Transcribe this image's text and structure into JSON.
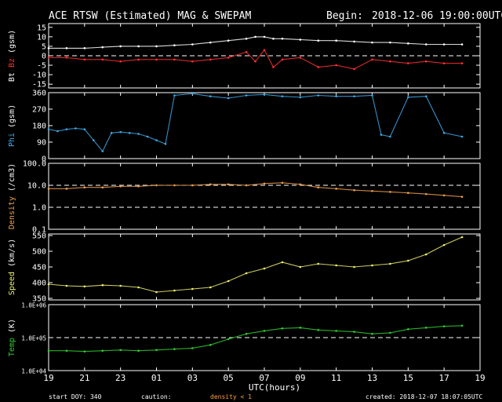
{
  "header": {
    "title": "ACE RTSW (Estimated) MAG & SWEPAM",
    "begin_label": "Begin:",
    "begin_value": "2018-12-06 19:00:00UTC"
  },
  "footer": {
    "start_doy": "start DOY: 340",
    "caution": "caution:",
    "density_note": "density < 1",
    "created": "created: 2018-12-07 18:07:05UTC"
  },
  "colors": {
    "bt": "#ffffff",
    "bz": "#ff3030",
    "phi": "#3fa9e8",
    "density": "#f0a050",
    "speed": "#f0f070",
    "temp": "#33cc33",
    "note": "#ffa040",
    "axis": "#ffffff"
  },
  "chart_data": {
    "type": "scatter",
    "x_axis": {
      "label": "UTC(hours)",
      "range": [
        0,
        24
      ],
      "tick_labels": [
        "19",
        "21",
        "23",
        "01",
        "03",
        "05",
        "07",
        "09",
        "11",
        "13",
        "15",
        "17",
        "19"
      ]
    },
    "panels": [
      {
        "id": "mag",
        "ylabel_parts": [
          "Bt",
          "Bz",
          "(gsm)"
        ],
        "ylim": [
          -17,
          17
        ],
        "ticks": [
          15,
          10,
          5,
          0,
          -5,
          -10,
          -15
        ],
        "tick_labels": [
          "15",
          "10",
          "5",
          "0",
          "-5",
          "-10",
          "-15"
        ],
        "dashed": [
          0
        ],
        "series": [
          {
            "name": "Bt",
            "color_key": "bt",
            "x": [
              0,
              1,
              2,
              3,
              4,
              5,
              6,
              7,
              8,
              9,
              10,
              11,
              11.5,
              12,
              12.5,
              13,
              14,
              15,
              16,
              17,
              18,
              19,
              20,
              21,
              22,
              23
            ],
            "y": [
              4,
              4,
              4,
              4.5,
              5,
              5,
              5,
              5.5,
              6,
              7,
              8,
              9,
              10,
              10,
              9,
              9,
              8.5,
              8,
              8,
              7.5,
              7,
              7,
              6.5,
              6,
              6,
              6
            ]
          },
          {
            "name": "Bz",
            "color_key": "bz",
            "x": [
              0,
              1,
              2,
              3,
              4,
              5,
              6,
              7,
              8,
              9,
              10,
              11,
              11.5,
              12,
              12.5,
              13,
              14,
              15,
              16,
              17,
              18,
              19,
              20,
              21,
              22,
              23
            ],
            "y": [
              -1,
              -1,
              -2,
              -2,
              -3,
              -2,
              -2,
              -2,
              -3,
              -2,
              -1,
              2,
              -3,
              3,
              -6,
              -2,
              -1,
              -6,
              -5,
              -7,
              -2,
              -3,
              -4,
              -3,
              -4,
              -4
            ]
          }
        ]
      },
      {
        "id": "phi",
        "ylabel_parts": [
          "Phi",
          "(gsm)"
        ],
        "ylim": [
          0,
          360
        ],
        "ticks": [
          360,
          270,
          180,
          90,
          0
        ],
        "tick_labels": [
          "360",
          "270",
          "180",
          "90",
          "0"
        ],
        "dashed": [],
        "series": [
          {
            "name": "Phi",
            "color_key": "phi",
            "x": [
              0,
              0.5,
              1,
              1.5,
              2,
              2.5,
              3,
              3.5,
              4,
              4.5,
              5,
              5.5,
              6,
              6.5,
              7,
              8,
              9,
              10,
              11,
              12,
              13,
              14,
              15,
              16,
              17,
              18,
              18.5,
              19,
              20,
              21,
              22,
              23
            ],
            "y": [
              160,
              150,
              160,
              165,
              160,
              100,
              40,
              140,
              145,
              140,
              135,
              120,
              100,
              80,
              345,
              355,
              340,
              330,
              345,
              350,
              340,
              335,
              345,
              340,
              340,
              345,
              130,
              120,
              335,
              340,
              140,
              120
            ]
          }
        ]
      },
      {
        "id": "density",
        "ylabel_parts": [
          "Density",
          "(/cm3)"
        ],
        "scale": "log",
        "ylim": [
          0.1,
          100
        ],
        "ticks": [
          100,
          10,
          1,
          0.1
        ],
        "tick_labels": [
          "100.0",
          "10.0",
          "1.0",
          "0.1"
        ],
        "dashed": [
          10,
          1
        ],
        "series": [
          {
            "name": "Density",
            "color_key": "density",
            "x": [
              0,
              1,
              2,
              3,
              4,
              5,
              6,
              7,
              8,
              9,
              10,
              11,
              12,
              13,
              14,
              15,
              16,
              17,
              18,
              19,
              20,
              21,
              22,
              23
            ],
            "y": [
              7,
              7,
              8,
              8,
              9,
              9,
              10,
              10,
              10,
              11,
              11,
              10,
              12,
              13,
              11,
              8,
              7,
              6,
              5.5,
              5,
              4.5,
              4,
              3.5,
              3
            ]
          }
        ]
      },
      {
        "id": "speed",
        "ylabel_parts": [
          "Speed",
          "(km/s)"
        ],
        "ylim": [
          345,
          555
        ],
        "ticks": [
          550,
          500,
          450,
          400,
          350
        ],
        "tick_labels": [
          "550",
          "500",
          "450",
          "400",
          "350"
        ],
        "dashed": [],
        "series": [
          {
            "name": "Speed",
            "color_key": "speed",
            "x": [
              0,
              1,
              2,
              3,
              4,
              5,
              6,
              7,
              8,
              9,
              10,
              11,
              12,
              13,
              14,
              15,
              16,
              17,
              18,
              19,
              20,
              21,
              22,
              23
            ],
            "y": [
              395,
              390,
              388,
              392,
              390,
              385,
              370,
              375,
              380,
              385,
              405,
              430,
              445,
              465,
              450,
              460,
              455,
              450,
              455,
              460,
              470,
              490,
              520,
              545
            ]
          }
        ]
      },
      {
        "id": "temp",
        "ylabel_parts": [
          "Temp",
          "(K)"
        ],
        "scale": "log",
        "ylim": [
          10000,
          1000000
        ],
        "ticks": [
          1000000,
          100000,
          10000
        ],
        "tick_labels": [
          "1.0E+06",
          "1.0E+05",
          "1.0E+04"
        ],
        "dashed": [
          100000
        ],
        "series": [
          {
            "name": "Temp",
            "color_key": "temp",
            "x": [
              0,
              1,
              2,
              3,
              4,
              5,
              6,
              7,
              8,
              9,
              10,
              11,
              12,
              13,
              14,
              15,
              16,
              17,
              18,
              19,
              20,
              21,
              22,
              23
            ],
            "y": [
              40000,
              40000,
              38000,
              40000,
              42000,
              40000,
              42000,
              45000,
              48000,
              60000,
              90000,
              130000,
              160000,
              190000,
              200000,
              170000,
              160000,
              150000,
              130000,
              140000,
              180000,
              200000,
              220000,
              230000
            ]
          }
        ]
      }
    ]
  }
}
